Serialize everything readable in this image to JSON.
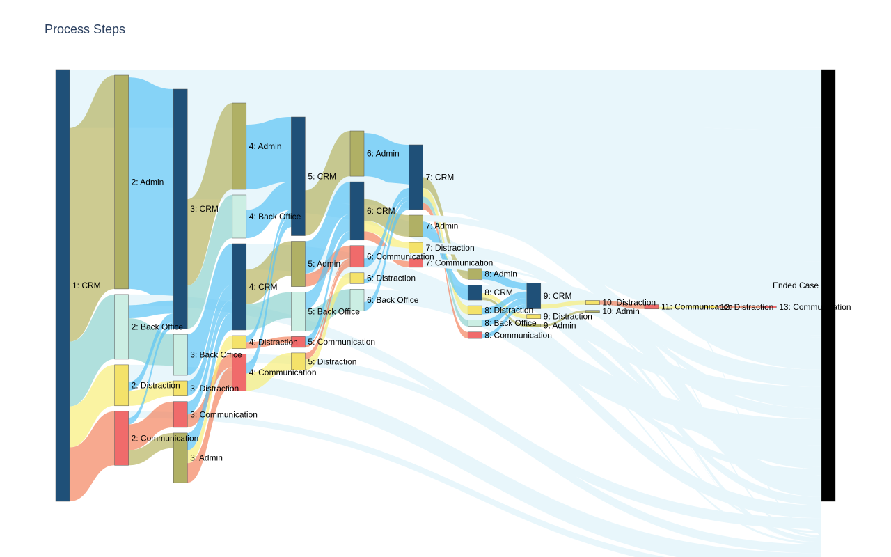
{
  "chart_data": {
    "type": "sankey",
    "title": "Process Steps",
    "nodes": [
      {
        "id": "1:CRM",
        "label": "1: CRM",
        "step": 1,
        "value": 1000,
        "color": "#1f5078"
      },
      {
        "id": "2:Admin",
        "label": "2: Admin",
        "step": 2,
        "value": 495,
        "color": "#b0b065"
      },
      {
        "id": "2:BackOffice",
        "label": "2: Back Office",
        "step": 2,
        "value": 150,
        "color": "#cbeee3"
      },
      {
        "id": "2:Distraction",
        "label": "2: Distraction",
        "step": 2,
        "value": 95,
        "color": "#f4e26a"
      },
      {
        "id": "2:Communication",
        "label": "2: Communication",
        "step": 2,
        "value": 125,
        "color": "#f06b6b"
      },
      {
        "id": "3:CRM",
        "label": "3: CRM",
        "step": 3,
        "value": 555,
        "color": "#1f5078"
      },
      {
        "id": "3:BackOffice",
        "label": "3: Back Office",
        "step": 3,
        "value": 95,
        "color": "#cbeee3"
      },
      {
        "id": "3:Distraction",
        "label": "3: Distraction",
        "step": 3,
        "value": 35,
        "color": "#f4e26a"
      },
      {
        "id": "3:Communication",
        "label": "3: Communication",
        "step": 3,
        "value": 60,
        "color": "#f06b6b"
      },
      {
        "id": "3:Admin",
        "label": "3: Admin",
        "step": 3,
        "value": 115,
        "color": "#b0b065"
      },
      {
        "id": "4:Admin",
        "label": "4: Admin",
        "step": 4,
        "value": 200,
        "color": "#b0b065"
      },
      {
        "id": "4:BackOffice",
        "label": "4: Back Office",
        "step": 4,
        "value": 100,
        "color": "#cbeee3"
      },
      {
        "id": "4:CRM",
        "label": "4: CRM",
        "step": 4,
        "value": 200,
        "color": "#1f5078"
      },
      {
        "id": "4:Distraction",
        "label": "4: Distraction",
        "step": 4,
        "value": 30,
        "color": "#f4e26a"
      },
      {
        "id": "4:Communication",
        "label": "4: Communication",
        "step": 4,
        "value": 85,
        "color": "#f06b6b"
      },
      {
        "id": "5:CRM",
        "label": "5: CRM",
        "step": 5,
        "value": 275,
        "color": "#1f5078"
      },
      {
        "id": "5:Admin",
        "label": "5: Admin",
        "step": 5,
        "value": 105,
        "color": "#b0b065"
      },
      {
        "id": "5:BackOffice",
        "label": "5: Back Office",
        "step": 5,
        "value": 90,
        "color": "#cbeee3"
      },
      {
        "id": "5:Communication",
        "label": "5: Communication",
        "step": 5,
        "value": 25,
        "color": "#f06b6b"
      },
      {
        "id": "5:Distraction",
        "label": "5: Distraction",
        "step": 5,
        "value": 40,
        "color": "#f4e26a"
      },
      {
        "id": "6:Admin",
        "label": "6: Admin",
        "step": 6,
        "value": 105,
        "color": "#b0b065"
      },
      {
        "id": "6:CRM",
        "label": "6: CRM",
        "step": 6,
        "value": 135,
        "color": "#1f5078"
      },
      {
        "id": "6:Communication",
        "label": "6: Communication",
        "step": 6,
        "value": 50,
        "color": "#f06b6b"
      },
      {
        "id": "6:Distraction",
        "label": "6: Distraction",
        "step": 6,
        "value": 25,
        "color": "#f4e26a"
      },
      {
        "id": "6:BackOffice",
        "label": "6: Back Office",
        "step": 6,
        "value": 50,
        "color": "#cbeee3"
      },
      {
        "id": "7:CRM",
        "label": "7: CRM",
        "step": 7,
        "value": 150,
        "color": "#1f5078"
      },
      {
        "id": "7:Admin",
        "label": "7: Admin",
        "step": 7,
        "value": 50,
        "color": "#b0b065"
      },
      {
        "id": "7:Distraction",
        "label": "7: Distraction",
        "step": 7,
        "value": 25,
        "color": "#f4e26a"
      },
      {
        "id": "7:Communication",
        "label": "7: Communication",
        "step": 7,
        "value": 20,
        "color": "#f06b6b"
      },
      {
        "id": "8:Admin",
        "label": "8: Admin",
        "step": 8,
        "value": 25,
        "color": "#b0b065"
      },
      {
        "id": "8:CRM",
        "label": "8: CRM",
        "step": 8,
        "value": 35,
        "color": "#1f5078"
      },
      {
        "id": "8:Distraction",
        "label": "8: Distraction",
        "step": 8,
        "value": 20,
        "color": "#f4e26a"
      },
      {
        "id": "8:BackOffice",
        "label": "8: Back Office",
        "step": 8,
        "value": 15,
        "color": "#cbeee3"
      },
      {
        "id": "8:Communication",
        "label": "8: Communication",
        "step": 8,
        "value": 15,
        "color": "#f06b6b"
      },
      {
        "id": "9:CRM",
        "label": "9: CRM",
        "step": 9,
        "value": 60,
        "color": "#1f5078"
      },
      {
        "id": "9:Distraction",
        "label": "9: Distraction",
        "step": 9,
        "value": 10,
        "color": "#f4e26a"
      },
      {
        "id": "9:Admin",
        "label": "9: Admin",
        "step": 9,
        "value": 6,
        "color": "#b0b065"
      },
      {
        "id": "10:Distraction",
        "label": "10: Distraction",
        "step": 10,
        "value": 10,
        "color": "#f4e26a"
      },
      {
        "id": "10:Admin",
        "label": "10: Admin",
        "step": 10,
        "value": 5,
        "color": "#b0b065"
      },
      {
        "id": "11:Communication",
        "label": "11: Communication",
        "step": 11,
        "value": 10,
        "color": "#f06b6b"
      },
      {
        "id": "12:Distraction",
        "label": "12: Distraction",
        "step": 12,
        "value": 5,
        "color": "#f4e26a"
      },
      {
        "id": "13:Communication",
        "label": "13: Communication",
        "step": 13,
        "value": 5,
        "color": "#f06b6b"
      },
      {
        "id": "EndedCase",
        "label": "Ended Case",
        "step": 14,
        "value": 1000,
        "color": "#000000"
      }
    ],
    "links": [
      {
        "source": "1:CRM",
        "target": "2:Admin",
        "value": 495
      },
      {
        "source": "1:CRM",
        "target": "2:BackOffice",
        "value": 150
      },
      {
        "source": "1:CRM",
        "target": "2:Distraction",
        "value": 95
      },
      {
        "source": "1:CRM",
        "target": "2:Communication",
        "value": 125
      },
      {
        "source": "1:CRM",
        "target": "EndedCase",
        "value": 135
      },
      {
        "source": "2:Admin",
        "target": "3:CRM",
        "value": 490
      },
      {
        "source": "2:Admin",
        "target": "EndedCase",
        "value": 5
      },
      {
        "source": "2:BackOffice",
        "target": "3:BackOffice",
        "value": 95
      },
      {
        "source": "2:BackOffice",
        "target": "3:CRM",
        "value": 30
      },
      {
        "source": "2:BackOffice",
        "target": "EndedCase",
        "value": 25
      },
      {
        "source": "2:Distraction",
        "target": "3:Distraction",
        "value": 35
      },
      {
        "source": "2:Distraction",
        "target": "3:CRM",
        "value": 20
      },
      {
        "source": "2:Distraction",
        "target": "EndedCase",
        "value": 40
      },
      {
        "source": "2:Communication",
        "target": "3:Communication",
        "value": 60
      },
      {
        "source": "2:Communication",
        "target": "3:Admin",
        "value": 35
      },
      {
        "source": "2:Communication",
        "target": "3:CRM",
        "value": 15
      },
      {
        "source": "2:Communication",
        "target": "EndedCase",
        "value": 15
      },
      {
        "source": "3:CRM",
        "target": "4:Admin",
        "value": 200
      },
      {
        "source": "3:CRM",
        "target": "4:BackOffice",
        "value": 100
      },
      {
        "source": "3:CRM",
        "target": "EndedCase",
        "value": 255
      },
      {
        "source": "3:BackOffice",
        "target": "4:CRM",
        "value": 95
      },
      {
        "source": "3:Distraction",
        "target": "4:CRM",
        "value": 35
      },
      {
        "source": "3:Communication",
        "target": "4:CRM",
        "value": 30
      },
      {
        "source": "3:Communication",
        "target": "4:Communication",
        "value": 30
      },
      {
        "source": "3:Admin",
        "target": "4:CRM",
        "value": 40
      },
      {
        "source": "3:Admin",
        "target": "4:Distraction",
        "value": 30
      },
      {
        "source": "3:Admin",
        "target": "4:Communication",
        "value": 45
      },
      {
        "source": "4:Admin",
        "target": "5:CRM",
        "value": 150
      },
      {
        "source": "4:Admin",
        "target": "EndedCase",
        "value": 50
      },
      {
        "source": "4:BackOffice",
        "target": "5:CRM",
        "value": 65
      },
      {
        "source": "4:BackOffice",
        "target": "EndedCase",
        "value": 35
      },
      {
        "source": "4:CRM",
        "target": "5:Admin",
        "value": 80
      },
      {
        "source": "4:CRM",
        "target": "5:BackOffice",
        "value": 60
      },
      {
        "source": "4:CRM",
        "target": "EndedCase",
        "value": 60
      },
      {
        "source": "4:Distraction",
        "target": "5:Communication",
        "value": 15
      },
      {
        "source": "4:Distraction",
        "target": "5:CRM",
        "value": 15
      },
      {
        "source": "4:Communication",
        "target": "5:Distraction",
        "value": 40
      },
      {
        "source": "4:Communication",
        "target": "5:CRM",
        "value": 25
      },
      {
        "source": "4:Communication",
        "target": "EndedCase",
        "value": 20
      },
      {
        "source": "5:CRM",
        "target": "6:Admin",
        "value": 105
      },
      {
        "source": "5:CRM",
        "target": "EndedCase",
        "value": 170
      },
      {
        "source": "5:Admin",
        "target": "6:CRM",
        "value": 75
      },
      {
        "source": "5:Admin",
        "target": "6:Communication",
        "value": 30
      },
      {
        "source": "5:BackOffice",
        "target": "6:CRM",
        "value": 40
      },
      {
        "source": "5:BackOffice",
        "target": "6:BackOffice",
        "value": 50
      },
      {
        "source": "5:Communication",
        "target": "6:CRM",
        "value": 20
      },
      {
        "source": "5:Communication",
        "target": "6:Communication",
        "value": 5
      },
      {
        "source": "5:Distraction",
        "target": "6:Distraction",
        "value": 25
      },
      {
        "source": "5:Distraction",
        "target": "6:Communication",
        "value": 15
      },
      {
        "source": "6:Admin",
        "target": "7:CRM",
        "value": 100
      },
      {
        "source": "6:Admin",
        "target": "EndedCase",
        "value": 5
      },
      {
        "source": "6:CRM",
        "target": "7:Admin",
        "value": 50
      },
      {
        "source": "6:CRM",
        "target": "7:Distraction",
        "value": 25
      },
      {
        "source": "6:CRM",
        "target": "7:Communication",
        "value": 20
      },
      {
        "source": "6:CRM",
        "target": "EndedCase",
        "value": 40
      },
      {
        "source": "6:Communication",
        "target": "7:CRM",
        "value": 20
      },
      {
        "source": "6:Communication",
        "target": "EndedCase",
        "value": 30
      },
      {
        "source": "6:Distraction",
        "target": "7:CRM",
        "value": 10
      },
      {
        "source": "6:Distraction",
        "target": "EndedCase",
        "value": 15
      },
      {
        "source": "6:BackOffice",
        "target": "7:CRM",
        "value": 20
      },
      {
        "source": "6:BackOffice",
        "target": "EndedCase",
        "value": 30
      },
      {
        "source": "7:CRM",
        "target": "8:Admin",
        "value": 25
      },
      {
        "source": "7:CRM",
        "target": "8:Distraction",
        "value": 20
      },
      {
        "source": "7:CRM",
        "target": "8:BackOffice",
        "value": 15
      },
      {
        "source": "7:CRM",
        "target": "8:Communication",
        "value": 15
      },
      {
        "source": "7:CRM",
        "target": "EndedCase",
        "value": 75
      },
      {
        "source": "7:Admin",
        "target": "8:CRM",
        "value": 35
      },
      {
        "source": "7:Admin",
        "target": "EndedCase",
        "value": 15
      },
      {
        "source": "7:Distraction",
        "target": "EndedCase",
        "value": 25
      },
      {
        "source": "7:Communication",
        "target": "EndedCase",
        "value": 20
      },
      {
        "source": "8:Admin",
        "target": "9:CRM",
        "value": 20
      },
      {
        "source": "8:Admin",
        "target": "EndedCase",
        "value": 5
      },
      {
        "source": "8:CRM",
        "target": "9:Distraction",
        "value": 10
      },
      {
        "source": "8:CRM",
        "target": "9:Admin",
        "value": 6
      },
      {
        "source": "8:CRM",
        "target": "EndedCase",
        "value": 19
      },
      {
        "source": "8:Distraction",
        "target": "9:CRM",
        "value": 15
      },
      {
        "source": "8:Distraction",
        "target": "EndedCase",
        "value": 5
      },
      {
        "source": "8:BackOffice",
        "target": "9:CRM",
        "value": 15
      },
      {
        "source": "8:Communication",
        "target": "9:CRM",
        "value": 10
      },
      {
        "source": "8:Communication",
        "target": "EndedCase",
        "value": 5
      },
      {
        "source": "9:CRM",
        "target": "10:Distraction",
        "value": 10
      },
      {
        "source": "9:CRM",
        "target": "EndedCase",
        "value": 50
      },
      {
        "source": "9:Distraction",
        "target": "EndedCase",
        "value": 10
      },
      {
        "source": "9:Admin",
        "target": "10:Admin",
        "value": 5
      },
      {
        "source": "9:Admin",
        "target": "EndedCase",
        "value": 1
      },
      {
        "source": "10:Distraction",
        "target": "11:Communication",
        "value": 10
      },
      {
        "source": "10:Admin",
        "target": "EndedCase",
        "value": 5
      },
      {
        "source": "11:Communication",
        "target": "12:Distraction",
        "value": 5
      },
      {
        "source": "11:Communication",
        "target": "EndedCase",
        "value": 5
      },
      {
        "source": "12:Distraction",
        "target": "13:Communication",
        "value": 5
      },
      {
        "source": "13:Communication",
        "target": "EndedCase",
        "value": 5
      }
    ],
    "end_link_color": "#e8f6fb"
  }
}
